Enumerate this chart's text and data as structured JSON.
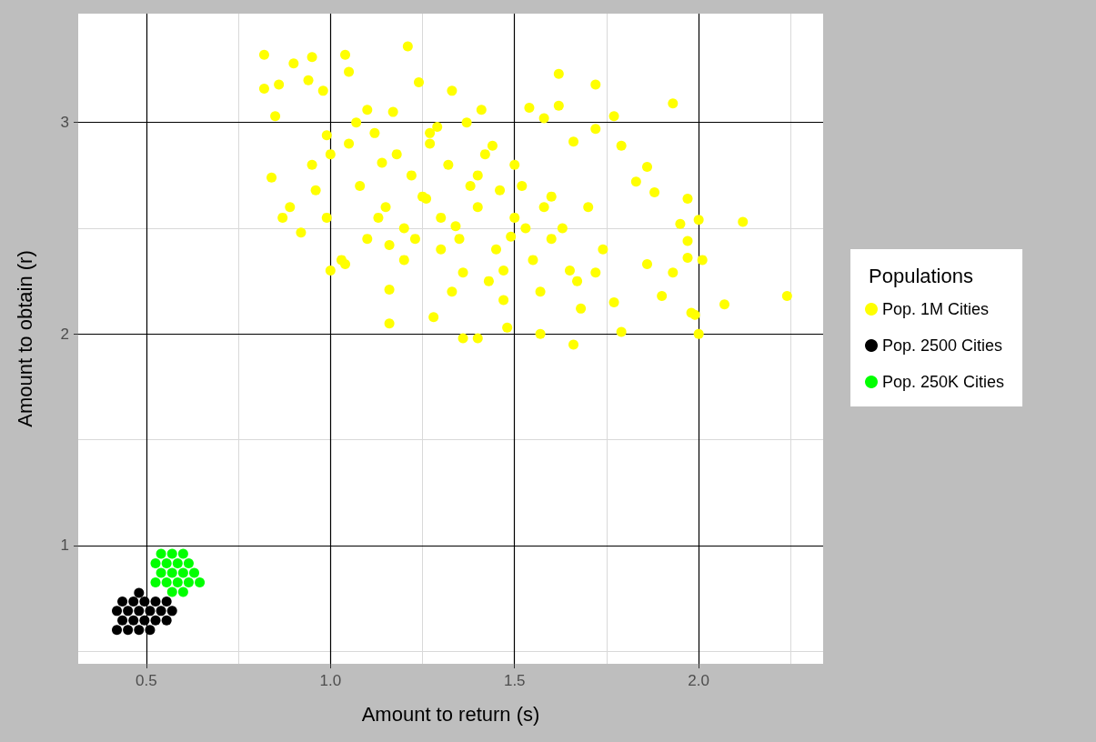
{
  "chart_data": {
    "type": "scatter",
    "xlabel": "Amount to return (s)",
    "ylabel": "Amount to obtain (r)",
    "legend_title": "Populations",
    "legend": "right",
    "marker": "circle",
    "grid": true,
    "xlim": [
      0.315,
      2.338
    ],
    "ylim": [
      0.44,
      3.515
    ],
    "xticks": [
      {
        "value": 0.5,
        "label": "0.5"
      },
      {
        "value": 0.75,
        "label": null
      },
      {
        "value": 1,
        "label": "1.0"
      },
      {
        "value": 1.25,
        "label": null
      },
      {
        "value": 1.5,
        "label": "1.5"
      },
      {
        "value": 1.75,
        "label": null
      },
      {
        "value": 2,
        "label": "2.0"
      },
      {
        "value": 2.25,
        "label": null
      }
    ],
    "yticks": [
      {
        "value": 0.5,
        "label": null
      },
      1,
      {
        "value": 1.5,
        "label": null
      },
      2,
      {
        "value": 2.5,
        "label": null
      },
      3
    ],
    "series": [
      {
        "name": "Pop. 1M Cities",
        "color": "#ffff00",
        "x": [
          0.82,
          0.82,
          0.85,
          0.86,
          0.84,
          0.87,
          0.89,
          0.92,
          0.9,
          0.95,
          0.94,
          0.98,
          0.99,
          0.96,
          0.99,
          1.0,
          1.04,
          1.04,
          1.05,
          1.21,
          1.1,
          1.14,
          1.16,
          1.16,
          1.16,
          1.24,
          1.29,
          1.26,
          1.34,
          1.36,
          1.28,
          1.36,
          1.4,
          1.33,
          1.41,
          1.44,
          1.46,
          1.49,
          1.47,
          1.48,
          1.54,
          1.58,
          1.62,
          1.62,
          1.66,
          1.72,
          1.72,
          1.57,
          1.66,
          1.68,
          1.72,
          1.77,
          1.79,
          1.83,
          1.86,
          1.88,
          1.79,
          1.86,
          1.93,
          1.97,
          1.95,
          1.97,
          1.97,
          2.01,
          2.0,
          1.98,
          2.0,
          1.99,
          2.07,
          2.12,
          2.24,
          1.9,
          1.93,
          1.05,
          1.08,
          1.12,
          1.15,
          1.18,
          1.2,
          1.22,
          1.25,
          1.27,
          1.3,
          1.32,
          1.35,
          1.38,
          1.4,
          1.42,
          1.45,
          1.5,
          1.52,
          1.55,
          1.58,
          1.6,
          1.63,
          1.65,
          1.7,
          1.74,
          1.1,
          1.2,
          1.3,
          1.4,
          1.5,
          1.6,
          1.03,
          1.13,
          1.23,
          1.33,
          1.43,
          1.53,
          0.95,
          1.0,
          1.07,
          1.17,
          1.27,
          1.37,
          1.47,
          1.57,
          1.67,
          1.77
        ],
        "values": [
          3.32,
          3.16,
          3.03,
          3.18,
          2.74,
          2.55,
          2.6,
          2.48,
          3.28,
          3.31,
          3.2,
          3.15,
          2.94,
          2.68,
          2.55,
          2.3,
          2.33,
          3.32,
          3.24,
          3.36,
          3.06,
          2.81,
          2.42,
          2.21,
          2.05,
          3.19,
          2.98,
          2.64,
          2.51,
          2.29,
          2.08,
          1.98,
          1.98,
          3.15,
          3.06,
          2.89,
          2.68,
          2.46,
          2.16,
          2.03,
          3.07,
          3.02,
          3.23,
          3.08,
          2.91,
          3.18,
          2.97,
          2.0,
          1.95,
          2.12,
          2.29,
          3.03,
          2.89,
          2.72,
          2.79,
          2.67,
          2.01,
          2.33,
          3.09,
          2.64,
          2.52,
          2.44,
          2.36,
          2.35,
          2.54,
          2.1,
          2.0,
          2.09,
          2.14,
          2.53,
          2.18,
          2.18,
          2.29,
          2.9,
          2.7,
          2.95,
          2.6,
          2.85,
          2.5,
          2.75,
          2.65,
          2.9,
          2.55,
          2.8,
          2.45,
          2.7,
          2.6,
          2.85,
          2.4,
          2.55,
          2.7,
          2.35,
          2.6,
          2.45,
          2.5,
          2.3,
          2.6,
          2.4,
          2.45,
          2.35,
          2.4,
          2.75,
          2.8,
          2.65,
          2.35,
          2.55,
          2.45,
          2.2,
          2.25,
          2.5,
          2.8,
          2.85,
          3.0,
          3.05,
          2.95,
          3.0,
          2.3,
          2.2,
          2.25,
          2.15
        ]
      },
      {
        "name": "Pop. 2500 Cities",
        "color": "#000000",
        "x": [
          0.42,
          0.45,
          0.48,
          0.51,
          0.435,
          0.465,
          0.495,
          0.525,
          0.555,
          0.42,
          0.45,
          0.48,
          0.51,
          0.54,
          0.57,
          0.435,
          0.465,
          0.495,
          0.525,
          0.555,
          0.48
        ],
        "values": [
          0.6,
          0.6,
          0.6,
          0.6,
          0.645,
          0.645,
          0.645,
          0.645,
          0.645,
          0.69,
          0.69,
          0.69,
          0.69,
          0.69,
          0.69,
          0.735,
          0.735,
          0.735,
          0.735,
          0.735,
          0.775
        ]
      },
      {
        "name": "Pop. 250K Cities",
        "color": "#00ff00",
        "x": [
          0.57,
          0.6,
          0.525,
          0.555,
          0.585,
          0.615,
          0.645,
          0.54,
          0.57,
          0.6,
          0.63,
          0.525,
          0.555,
          0.585,
          0.615,
          0.54,
          0.57,
          0.6
        ],
        "values": [
          0.78,
          0.78,
          0.825,
          0.825,
          0.825,
          0.825,
          0.825,
          0.87,
          0.87,
          0.87,
          0.87,
          0.915,
          0.915,
          0.915,
          0.915,
          0.96,
          0.96,
          0.96
        ]
      }
    ]
  }
}
